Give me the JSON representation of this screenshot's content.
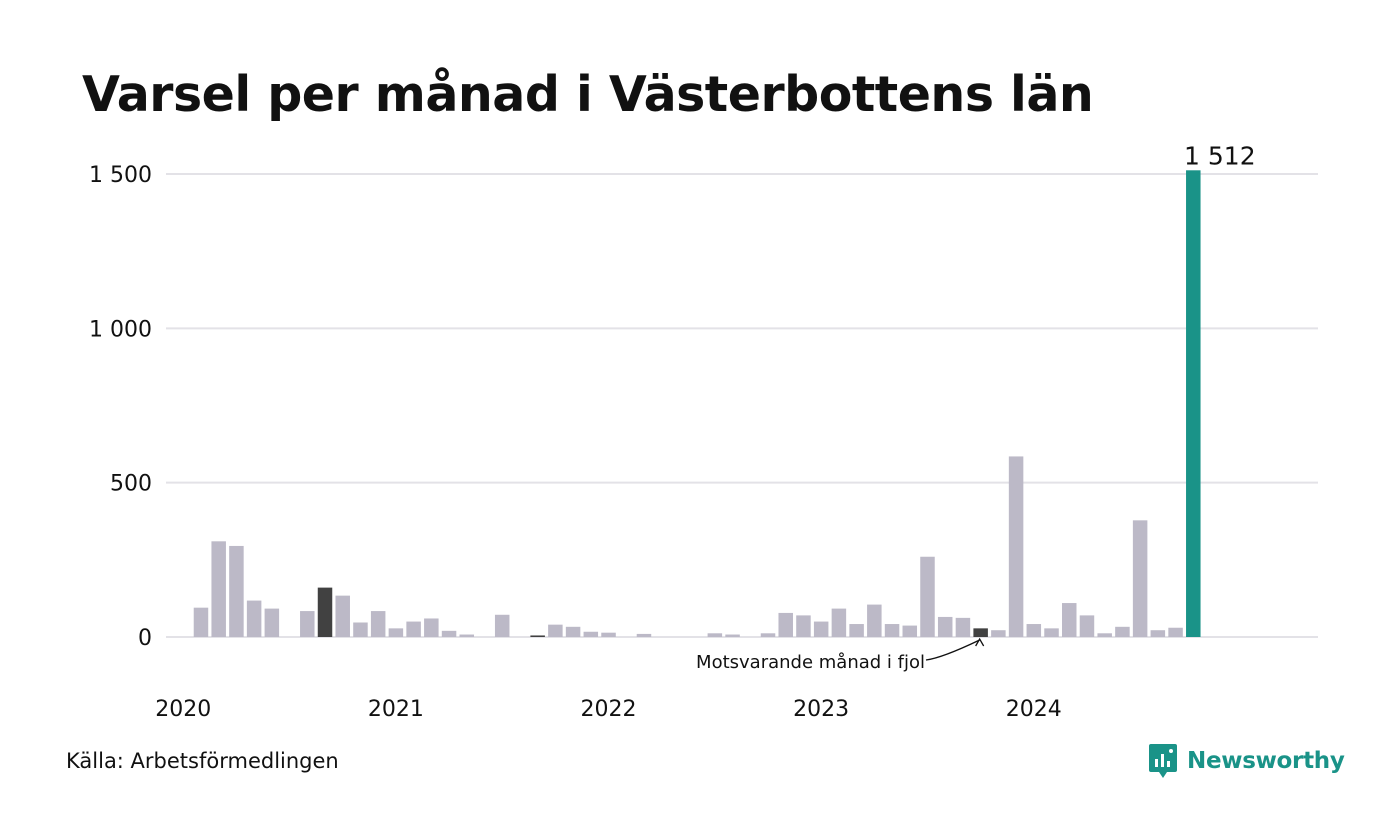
{
  "chart_data": {
    "type": "bar",
    "title": "Varsel per månad i Västerbottens län",
    "xlabel": "",
    "ylabel": "",
    "ylim": [
      0,
      1500
    ],
    "yticks": [
      0,
      500,
      1000,
      1500
    ],
    "ytick_labels": [
      "0",
      "500",
      "1 000",
      "1 500"
    ],
    "xtick_labels": [
      "2020",
      "2021",
      "2022",
      "2023",
      "2024"
    ],
    "grid": true,
    "legend": "none",
    "start_year": 2020,
    "start_month": 1,
    "values": [
      0,
      95,
      310,
      295,
      118,
      92,
      0,
      84,
      160,
      134,
      47,
      84,
      28,
      50,
      60,
      20,
      8,
      0,
      72,
      0,
      5,
      40,
      33,
      17,
      14,
      0,
      10,
      0,
      0,
      0,
      12,
      8,
      0,
      12,
      78,
      70,
      50,
      92,
      42,
      105,
      42,
      37,
      260,
      65,
      62,
      28,
      22,
      585,
      42,
      28,
      110,
      70,
      12,
      33,
      378,
      22,
      30,
      1512
    ],
    "highlight_index": 57,
    "highlight_label": "1 512",
    "comparison_indices": [
      8,
      20,
      32,
      45
    ],
    "annotation": {
      "text": "Motsvarande månad i fjol",
      "target_index": 45
    },
    "colors": {
      "default": "#bcb9c7",
      "comparison": "#414141",
      "highlight": "#1a9388",
      "grid": "#e3e2e7"
    }
  },
  "footer": {
    "source": "Källa: Arbetsförmedlingen",
    "brand": "Newsworthy"
  },
  "icons": {
    "brand_logo": "newsworthy-logo-icon"
  }
}
